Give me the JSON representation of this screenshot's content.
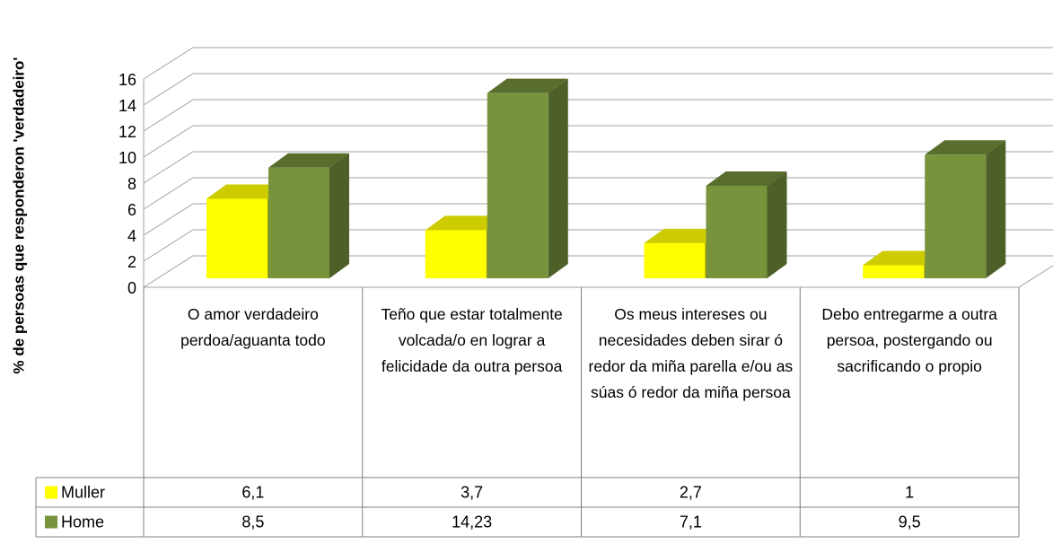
{
  "chart_data": {
    "type": "bar3d",
    "y_label": "% de persoas que responderon 'verdadeiro'",
    "categories": [
      "O amor verdadeiro perdoa/aguanta todo",
      "Teño que estar totalmente volcada/o en lograr a felicidade da outra persoa",
      "Os meus intereses ou necesidades deben sirar ó redor da miña parella e/ou as súas ó redor da miña persoa",
      "Debo entregarme a outra persoa, postergando ou sacrificando o propio"
    ],
    "series": [
      {
        "name": "Muller",
        "color": "#ffff00",
        "values": [
          6.1,
          3.7,
          2.7,
          1
        ],
        "value_labels": [
          "6,1",
          "3,7",
          "2,7",
          "1"
        ]
      },
      {
        "name": "Home",
        "color": "#77933c",
        "values": [
          8.5,
          14.23,
          7.1,
          9.5
        ],
        "value_labels": [
          "8,5",
          "14,23",
          "7,1",
          "9,5"
        ]
      }
    ],
    "ylim": [
      0,
      16
    ],
    "yticks": [
      0,
      2,
      4,
      6,
      8,
      10,
      12,
      14,
      16
    ],
    "grid": true,
    "data_table": true
  }
}
